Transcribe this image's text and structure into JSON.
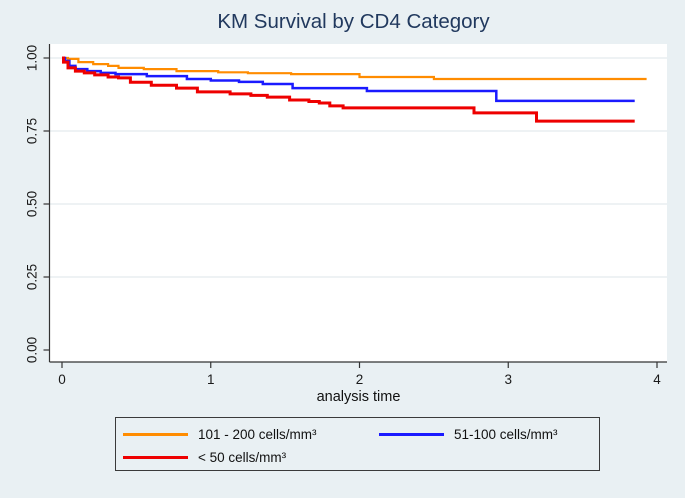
{
  "colors": {
    "background": "#e9f0f3",
    "plot_background": "#ffffff",
    "gridline": "#e3ebee",
    "axis": "#333333",
    "tick_text": "#1a1a1a",
    "title": "#21395e"
  },
  "chart_data": {
    "type": "line",
    "subtype": "kaplan-meier-step",
    "title": "KM Survival by CD4 Category",
    "xlabel": "analysis time",
    "ylabel": "",
    "xlim": [
      0,
      4
    ],
    "ylim": [
      0,
      1
    ],
    "x_ticks": [
      {
        "value": 0,
        "label": "0"
      },
      {
        "value": 1,
        "label": "1"
      },
      {
        "value": 2,
        "label": "2"
      },
      {
        "value": 3,
        "label": "3"
      },
      {
        "value": 4,
        "label": "4"
      }
    ],
    "y_ticks": [
      {
        "value": 0.0,
        "label": "0.00"
      },
      {
        "value": 0.25,
        "label": "0.25"
      },
      {
        "value": 0.5,
        "label": "0.50"
      },
      {
        "value": 0.75,
        "label": "0.75"
      },
      {
        "value": 1.0,
        "label": "1.00"
      }
    ],
    "grid": true,
    "legend_position": "bottom",
    "series": [
      {
        "id": "cd4-101-200",
        "name": "101 - 200 cells/mm³",
        "color": "#ff8c00",
        "stroke_width": 2.2,
        "points": [
          [
            0,
            1.0
          ],
          [
            0.04,
            0.997
          ],
          [
            0.11,
            0.986
          ],
          [
            0.21,
            0.979
          ],
          [
            0.31,
            0.973
          ],
          [
            0.38,
            0.966
          ],
          [
            0.55,
            0.962
          ],
          [
            0.77,
            0.955
          ],
          [
            1.05,
            0.951
          ],
          [
            1.25,
            0.948
          ],
          [
            1.54,
            0.945
          ],
          [
            2.0,
            0.935
          ],
          [
            2.5,
            0.928
          ],
          [
            3.93,
            0.928
          ]
        ]
      },
      {
        "id": "cd4-51-100",
        "name": "51-100 cells/mm³",
        "color": "#1a1aff",
        "stroke_width": 2.5,
        "points": [
          [
            0,
            1.0
          ],
          [
            0.02,
            0.99
          ],
          [
            0.05,
            0.973
          ],
          [
            0.09,
            0.962
          ],
          [
            0.17,
            0.955
          ],
          [
            0.26,
            0.949
          ],
          [
            0.36,
            0.945
          ],
          [
            0.57,
            0.938
          ],
          [
            0.84,
            0.928
          ],
          [
            1.0,
            0.923
          ],
          [
            1.19,
            0.918
          ],
          [
            1.35,
            0.911
          ],
          [
            1.55,
            0.897
          ],
          [
            2.05,
            0.887
          ],
          [
            2.92,
            0.853
          ],
          [
            3.85,
            0.853
          ]
        ]
      },
      {
        "id": "cd4-lt-50",
        "name": "< 50 cells/mm³",
        "color": "#ee0000",
        "stroke_width": 3,
        "points": [
          [
            0,
            1.0
          ],
          [
            0.01,
            0.986
          ],
          [
            0.04,
            0.966
          ],
          [
            0.09,
            0.955
          ],
          [
            0.15,
            0.949
          ],
          [
            0.22,
            0.942
          ],
          [
            0.31,
            0.935
          ],
          [
            0.38,
            0.932
          ],
          [
            0.46,
            0.917
          ],
          [
            0.6,
            0.907
          ],
          [
            0.77,
            0.897
          ],
          [
            0.91,
            0.884
          ],
          [
            1.13,
            0.877
          ],
          [
            1.27,
            0.872
          ],
          [
            1.38,
            0.866
          ],
          [
            1.53,
            0.856
          ],
          [
            1.66,
            0.851
          ],
          [
            1.73,
            0.846
          ],
          [
            1.8,
            0.836
          ],
          [
            1.89,
            0.829
          ],
          [
            2.77,
            0.812
          ],
          [
            3.19,
            0.784
          ],
          [
            3.85,
            0.784
          ]
        ]
      }
    ]
  }
}
